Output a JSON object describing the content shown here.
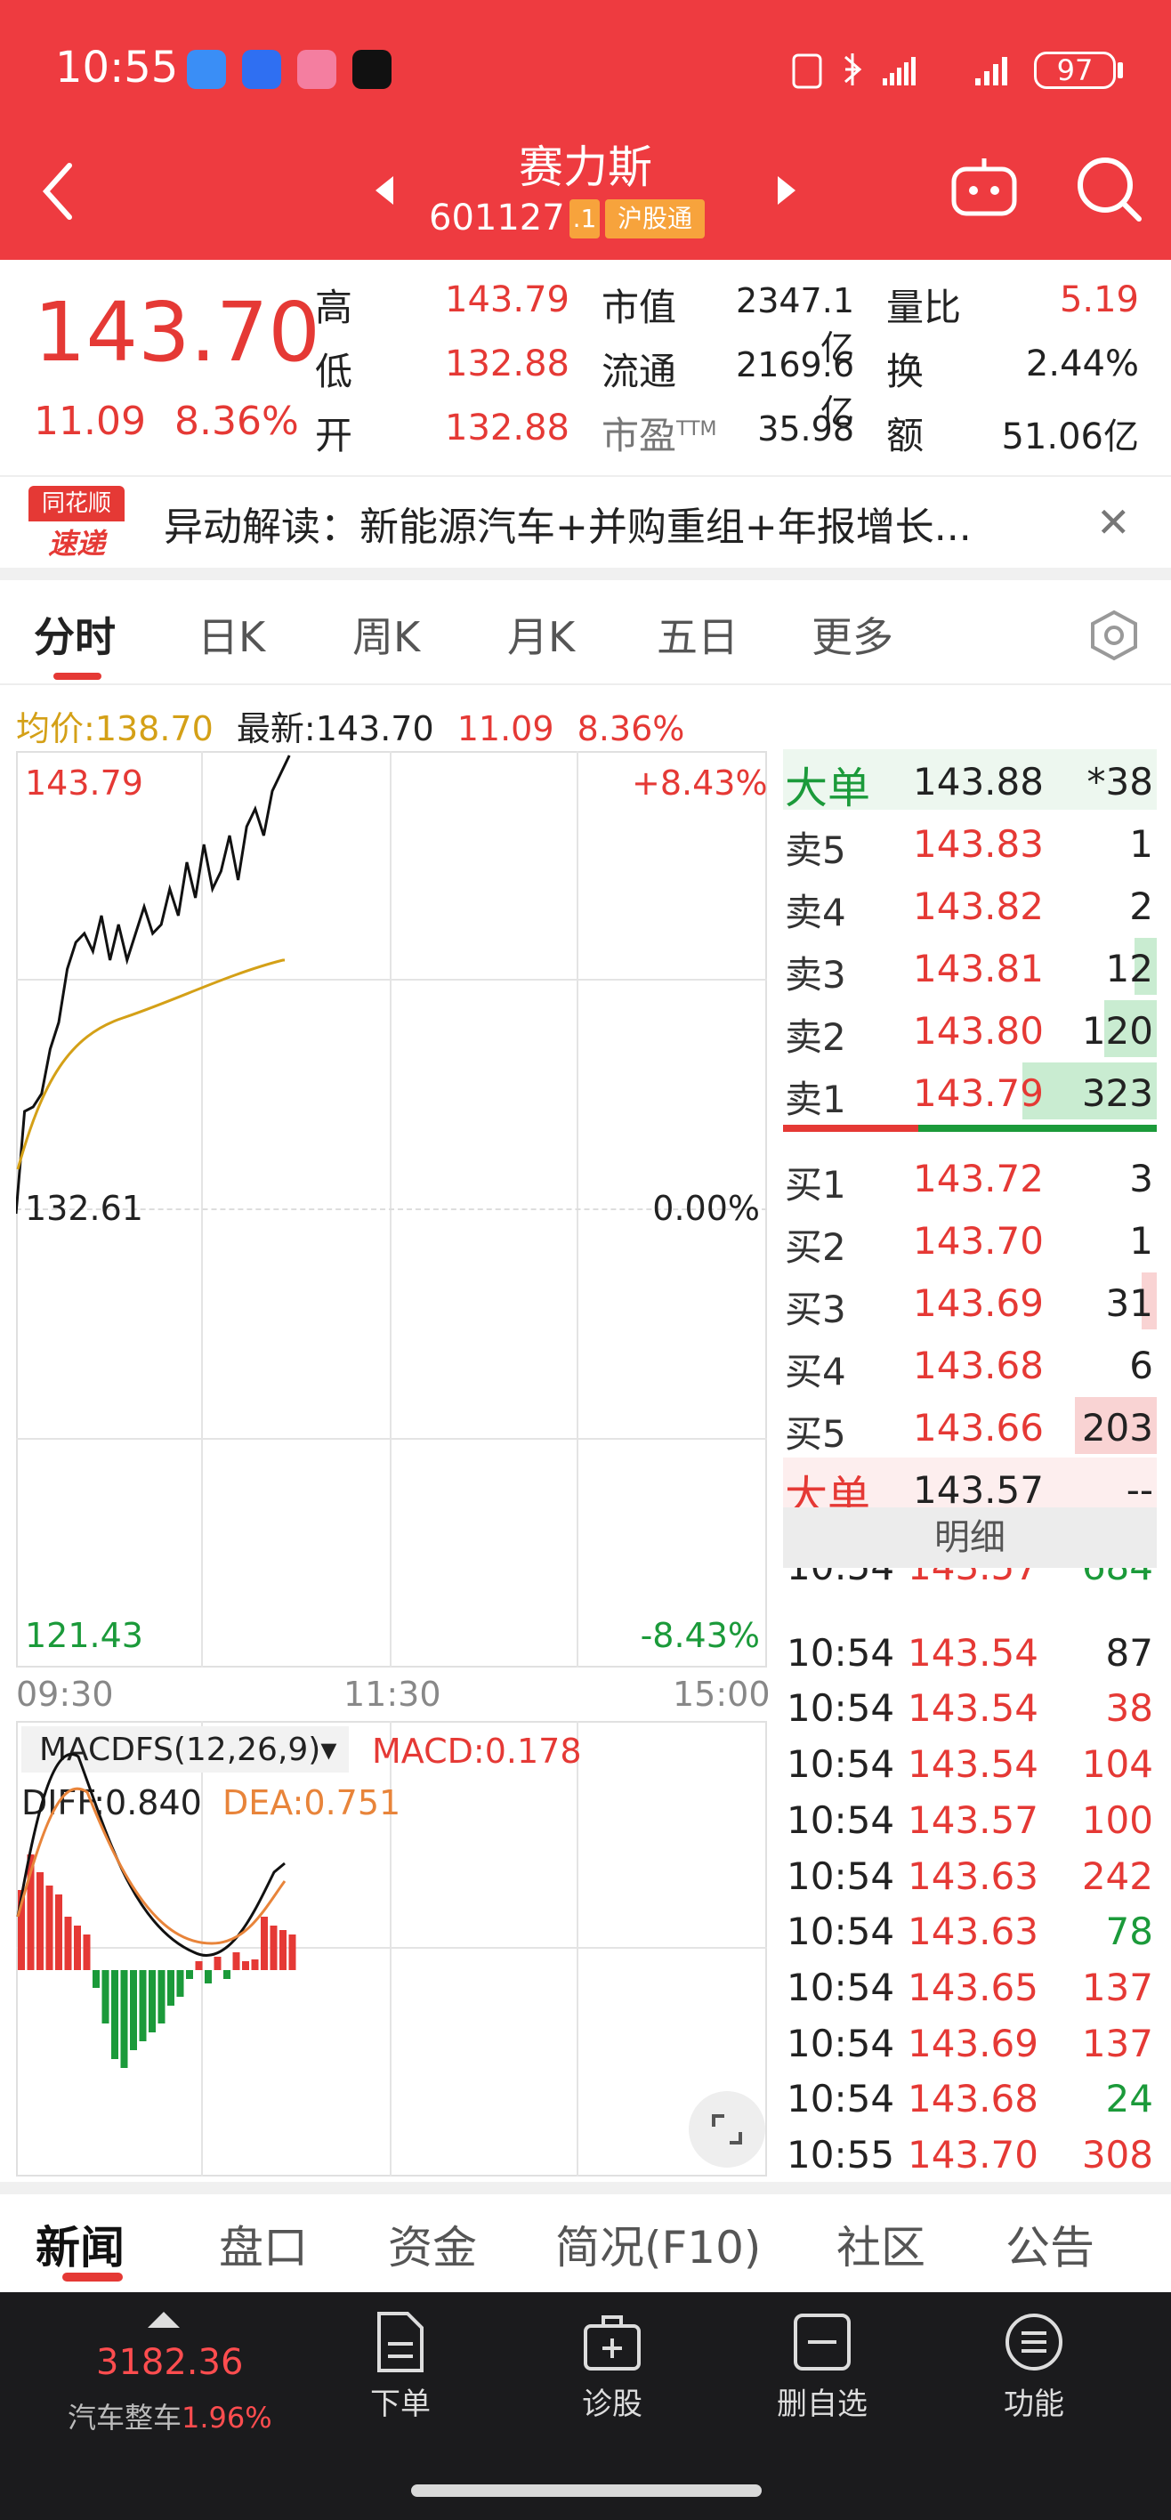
{
  "status": {
    "time": "10:55",
    "battery": "97"
  },
  "header": {
    "title": "赛力斯",
    "code": "601127",
    "tag_suffix": ".1",
    "tag_market": "沪股通"
  },
  "quote": {
    "price": "143.70",
    "change": "11.09",
    "change_pct": "8.36%",
    "high_label": "高",
    "high": "143.79",
    "low_label": "低",
    "low": "132.88",
    "open_label": "开",
    "open": "132.88",
    "mcap_label": "市值",
    "mcap": "2347.1亿",
    "float_label": "流通",
    "float": "2169.6亿",
    "pe_label": "市盈",
    "pe_sup": "TTM",
    "pe": "35.98",
    "vr_label": "量比",
    "vr": "5.19",
    "turn_label": "换",
    "turn": "2.44%",
    "amt_label": "额",
    "amt": "51.06亿"
  },
  "news": {
    "logo_top": "同花顺",
    "logo_bottom": "速递",
    "text": "异动解读：新能源汽车+并购重组+年报增长..."
  },
  "tabs": [
    "分时",
    "日K",
    "周K",
    "月K",
    "五日",
    "更多"
  ],
  "info": {
    "avg_label": "均价:",
    "avg": "138.70",
    "latest_label": "最新:",
    "latest": "143.70",
    "change": "11.09",
    "pct": "8.36%"
  },
  "chart": {
    "y_top": "143.79",
    "y_mid": "132.61",
    "y_bottom": "121.43",
    "pct_top": "+8.43%",
    "pct_mid": "0.00%",
    "pct_bottom": "-8.43%",
    "x_start": "09:30",
    "x_mid": "11:30",
    "x_end": "15:00",
    "macd_title": "MACDFS(12,26,9)",
    "macd": "MACD:0.178",
    "diff": "DIFF:0.840",
    "dea": "DEA:0.751"
  },
  "orderbook": [
    {
      "name": "大单",
      "price": "143.88",
      "vol": "*38",
      "kind": "big-sell"
    },
    {
      "name": "卖5",
      "price": "143.83",
      "vol": "1",
      "kind": "sell",
      "fill": 0
    },
    {
      "name": "卖4",
      "price": "143.82",
      "vol": "2",
      "kind": "sell",
      "fill": 0
    },
    {
      "name": "卖3",
      "price": "143.81",
      "vol": "12",
      "kind": "sell",
      "fill": 0.06
    },
    {
      "name": "卖2",
      "price": "143.80",
      "vol": "120",
      "kind": "sell",
      "fill": 0.14
    },
    {
      "name": "卖1",
      "price": "143.79",
      "vol": "323",
      "kind": "sell",
      "fill": 0.36
    },
    {
      "name": "买1",
      "price": "143.72",
      "vol": "3",
      "kind": "buy",
      "fill": 0
    },
    {
      "name": "买2",
      "price": "143.70",
      "vol": "1",
      "kind": "buy",
      "fill": 0
    },
    {
      "name": "买3",
      "price": "143.69",
      "vol": "31",
      "kind": "buy",
      "fill": 0.04
    },
    {
      "name": "买4",
      "price": "143.68",
      "vol": "6",
      "kind": "buy",
      "fill": 0
    },
    {
      "name": "买5",
      "price": "143.66",
      "vol": "203",
      "kind": "buy",
      "fill": 0.22
    },
    {
      "name": "大单",
      "price": "143.57",
      "vol": "--",
      "kind": "big-buy"
    }
  ],
  "detail_label": "明细",
  "ticks": [
    {
      "t": "10:54",
      "p": "143.57",
      "v": "684",
      "pc": "red",
      "vc": "green"
    },
    {
      "t": "10:54",
      "p": "143.54",
      "v": "87",
      "pc": "red",
      "vc": "black"
    },
    {
      "t": "10:54",
      "p": "143.54",
      "v": "38",
      "pc": "red",
      "vc": "red"
    },
    {
      "t": "10:54",
      "p": "143.54",
      "v": "104",
      "pc": "red",
      "vc": "red"
    },
    {
      "t": "10:54",
      "p": "143.57",
      "v": "100",
      "pc": "red",
      "vc": "red"
    },
    {
      "t": "10:54",
      "p": "143.63",
      "v": "242",
      "pc": "red",
      "vc": "red"
    },
    {
      "t": "10:54",
      "p": "143.63",
      "v": "78",
      "pc": "red",
      "vc": "green"
    },
    {
      "t": "10:54",
      "p": "143.65",
      "v": "137",
      "pc": "red",
      "vc": "red"
    },
    {
      "t": "10:54",
      "p": "143.69",
      "v": "137",
      "pc": "red",
      "vc": "red"
    },
    {
      "t": "10:54",
      "p": "143.68",
      "v": "24",
      "pc": "red",
      "vc": "green"
    },
    {
      "t": "10:55",
      "p": "143.70",
      "v": "308",
      "pc": "red",
      "vc": "red"
    }
  ],
  "bottom_tabs": [
    "新闻",
    "盘口",
    "资金",
    "简况(F10)",
    "社区",
    "公告"
  ],
  "footer": {
    "index": "3182.36",
    "sector": "汽车整车",
    "sector_pct": "1.96%",
    "buttons": [
      {
        "label": "下单",
        "icon": "document-icon"
      },
      {
        "label": "诊股",
        "icon": "medkit-icon"
      },
      {
        "label": "删自选",
        "icon": "minus-box-icon"
      },
      {
        "label": "功能",
        "icon": "menu-circle-icon"
      }
    ]
  },
  "colors": {
    "header": "#ee3b40",
    "up": "#e53935",
    "down": "#1b9a3a",
    "avg": "#d4a017"
  }
}
